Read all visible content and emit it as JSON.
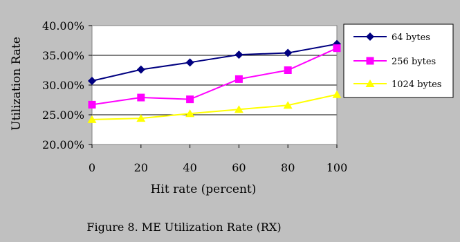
{
  "chart_data": {
    "type": "line",
    "title": "",
    "caption": "Figure 8. ME Utilization Rate (RX)",
    "xlabel": "Hit rate (percent)",
    "ylabel": "Utilization Rate",
    "x": [
      0,
      20,
      40,
      60,
      80,
      100
    ],
    "x_tick_labels": [
      "0",
      "20",
      "40",
      "60",
      "80",
      "100"
    ],
    "ylim": [
      20,
      40
    ],
    "y_tick_values": [
      20,
      25,
      30,
      35,
      40
    ],
    "y_tick_labels": [
      "20.00%",
      "25.00%",
      "30.00%",
      "35.00%",
      "40.00%"
    ],
    "grid": "horizontal",
    "legend_position": "right",
    "plot_background": "#ffffff",
    "figure_background": "#c0c0c0",
    "series": [
      {
        "name": "64 bytes",
        "color": "#000080",
        "marker": "diamond",
        "values": [
          30.7,
          32.6,
          33.8,
          35.1,
          35.4,
          36.9
        ]
      },
      {
        "name": "256 bytes",
        "color": "#ff00ff",
        "marker": "square",
        "values": [
          26.7,
          27.9,
          27.6,
          31.0,
          32.5,
          36.2
        ]
      },
      {
        "name": "1024 bytes",
        "color": "#ffff00",
        "marker": "triangle",
        "values": [
          24.2,
          24.4,
          25.2,
          25.9,
          26.6,
          28.4
        ]
      }
    ]
  }
}
